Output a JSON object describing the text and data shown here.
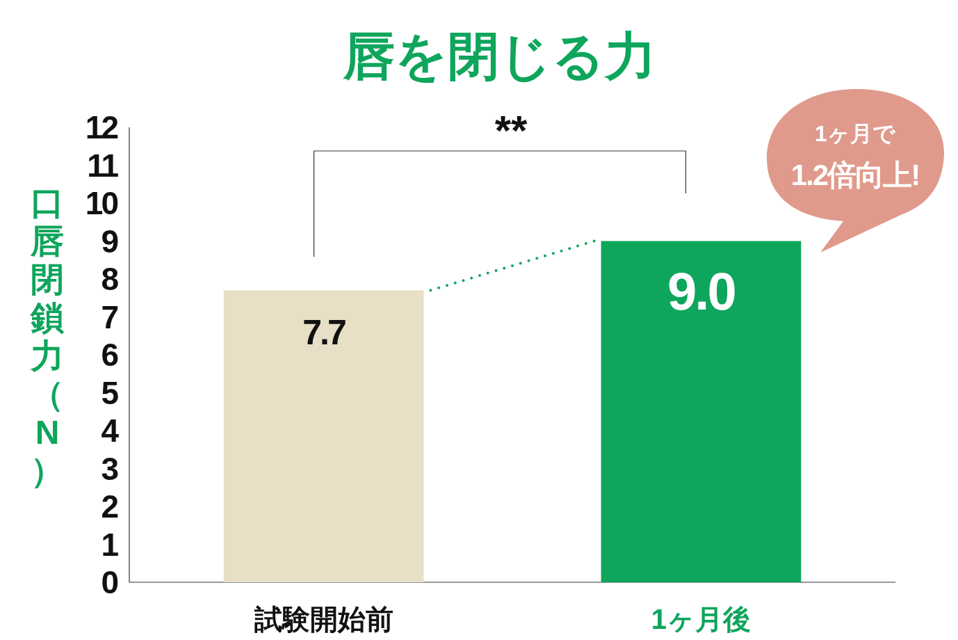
{
  "chart_data": {
    "type": "bar",
    "title": "唇を閉じる力",
    "ylabel": "口唇閉鎖力（N）",
    "categories": [
      "試験開始前",
      "1ヶ月後"
    ],
    "values": [
      7.7,
      9.0
    ],
    "colors": [
      "#e8dfc7",
      "#0ea55c"
    ],
    "ylim": [
      0,
      12
    ],
    "yticks": [
      0,
      1,
      2,
      3,
      4,
      5,
      6,
      7,
      8,
      9,
      10,
      11,
      12
    ],
    "grid": false,
    "value_labels": [
      "7.7",
      "9.0"
    ],
    "annotations": [
      "**",
      "1ヶ月で",
      "1.2倍向上!"
    ]
  }
}
